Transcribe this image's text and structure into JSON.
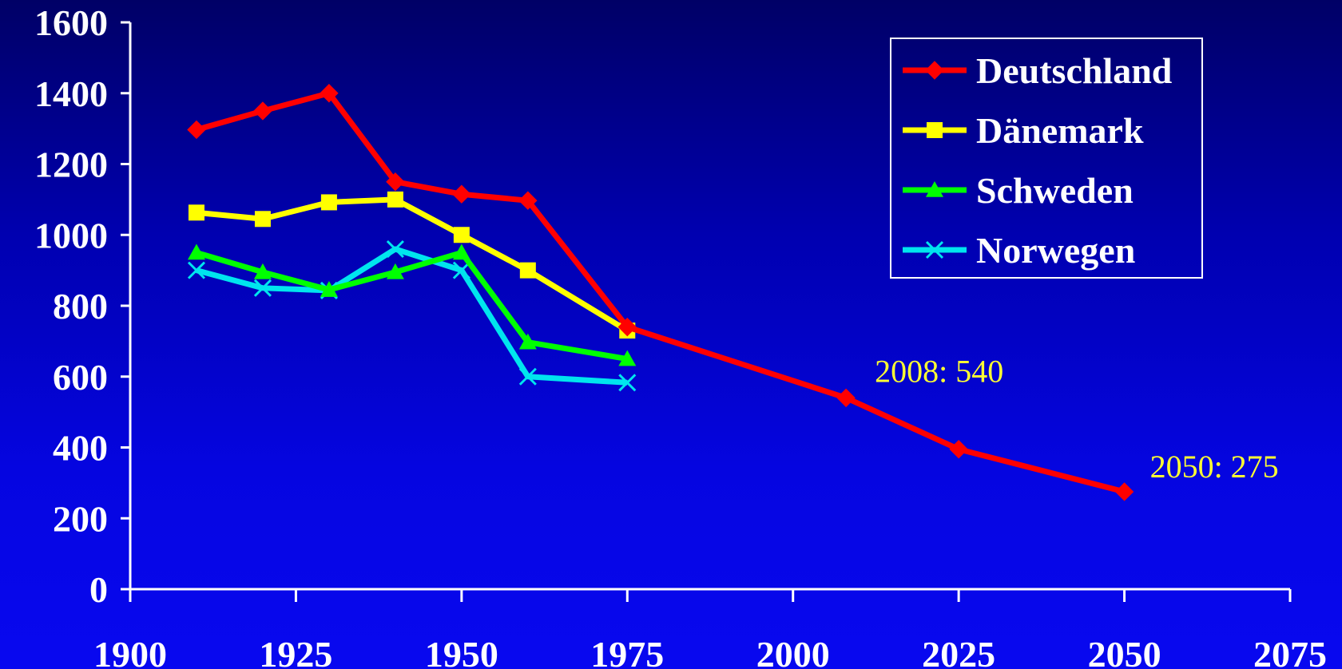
{
  "chart_data": {
    "type": "line",
    "title": "",
    "xlabel": "",
    "ylabel": "",
    "xlim": [
      1900,
      2075
    ],
    "ylim": [
      0,
      1600
    ],
    "x_ticks": [
      1900,
      1925,
      1950,
      1975,
      2000,
      2025,
      2050,
      2075
    ],
    "y_ticks": [
      0,
      200,
      400,
      600,
      800,
      1000,
      1200,
      1400,
      1600
    ],
    "x_tick_labels": [
      "1900",
      "1925",
      "1950",
      "1975",
      "2000",
      "2025",
      "2050",
      "2075"
    ],
    "y_tick_labels": [
      "0",
      "200",
      "400",
      "600",
      "800",
      "1000",
      "1200",
      "1400",
      "1600"
    ],
    "grid": false,
    "legend_position": "top-right",
    "series": [
      {
        "name": "Deutschland",
        "color": "#ff0000",
        "marker": "diamond",
        "points": [
          [
            1910,
            1297
          ],
          [
            1920,
            1350
          ],
          [
            1930,
            1400
          ],
          [
            1940,
            1150
          ],
          [
            1950,
            1115
          ],
          [
            1960,
            1097
          ],
          [
            1975,
            740
          ],
          [
            2008,
            540
          ],
          [
            2025,
            395
          ],
          [
            2050,
            275
          ]
        ]
      },
      {
        "name": "Dänemark",
        "color": "#ffff00",
        "marker": "square",
        "points": [
          [
            1910,
            1063
          ],
          [
            1920,
            1045
          ],
          [
            1930,
            1092
          ],
          [
            1940,
            1100
          ],
          [
            1950,
            1000
          ],
          [
            1960,
            900
          ],
          [
            1975,
            730
          ]
        ]
      },
      {
        "name": "Schweden",
        "color": "#00ff00",
        "marker": "triangle",
        "points": [
          [
            1910,
            950
          ],
          [
            1920,
            895
          ],
          [
            1930,
            845
          ],
          [
            1940,
            895
          ],
          [
            1950,
            950
          ],
          [
            1960,
            697
          ],
          [
            1975,
            650
          ]
        ]
      },
      {
        "name": "Norwegen",
        "color": "#00e5ee",
        "marker": "x",
        "points": [
          [
            1910,
            900
          ],
          [
            1920,
            850
          ],
          [
            1930,
            843
          ],
          [
            1940,
            960
          ],
          [
            1950,
            900
          ],
          [
            1960,
            600
          ],
          [
            1975,
            583
          ]
        ]
      }
    ],
    "annotations": [
      {
        "text": "2008: 540",
        "x": 2008,
        "y": 540,
        "color": "#ffff33"
      },
      {
        "text": "2050: 275",
        "x": 2050,
        "y": 275,
        "color": "#ffff33"
      }
    ]
  }
}
